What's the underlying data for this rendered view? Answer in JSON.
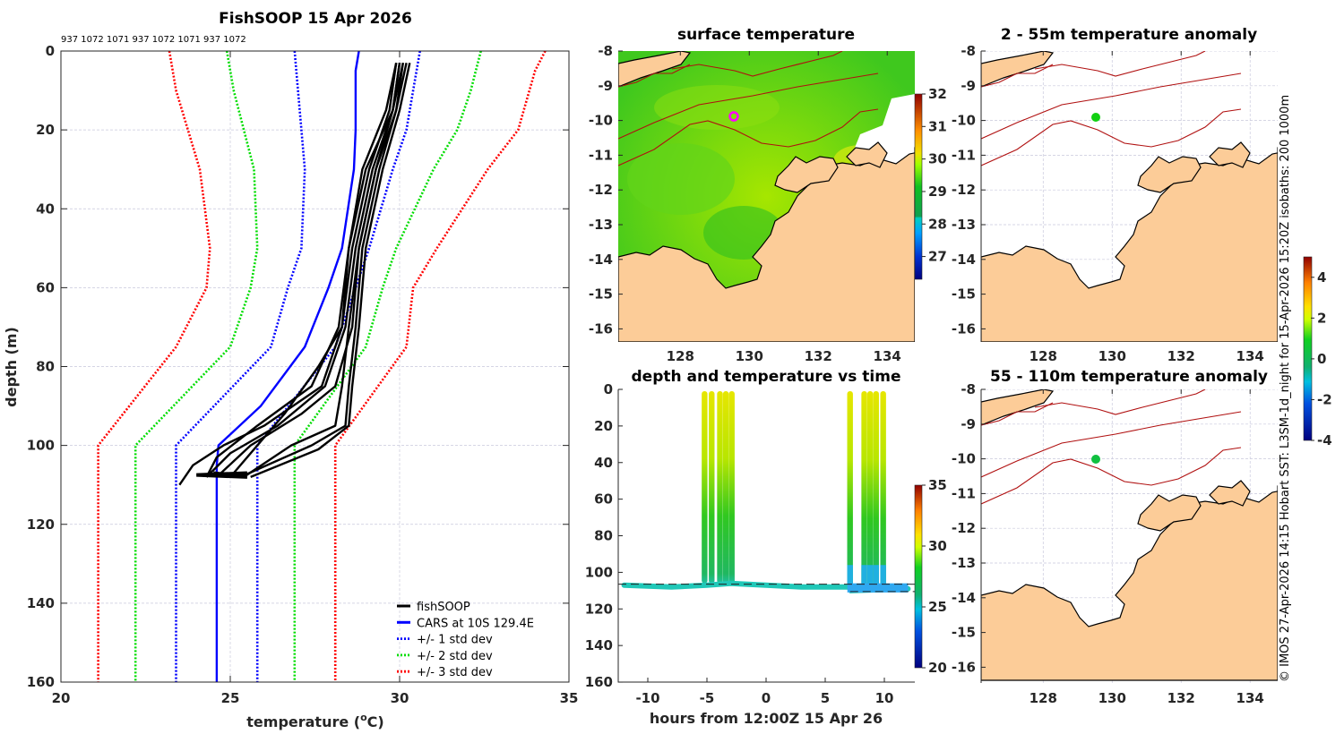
{
  "chart_data": [
    {
      "type": "line",
      "id": "profile",
      "title": "FishSOOP 15 Apr 2026",
      "subtitle": "937 1072 1071 937 1072 1071 937 1072",
      "xlabel": "temperature (°C)",
      "ylabel": "depth (m)",
      "xlim": [
        20,
        35
      ],
      "ylim": [
        160,
        0
      ],
      "xticks": [
        "20",
        "25",
        "30",
        "35"
      ],
      "yticks": [
        "0",
        "20",
        "40",
        "60",
        "80",
        "100",
        "120",
        "140",
        "160"
      ],
      "grid": true,
      "legend_position": "bottom-right",
      "legend": [
        {
          "label": "fishSOOP",
          "color": "#000000",
          "style": "solid"
        },
        {
          "label": "CARS at 10S 129.4E",
          "color": "#0000ff",
          "style": "solid"
        },
        {
          "label": "+/- 1 std dev",
          "color": "#0000ff",
          "style": "dotted"
        },
        {
          "label": "+/- 2 std dev",
          "color": "#00dd00",
          "style": "dotted"
        },
        {
          "label": "+/- 3 std dev",
          "color": "#ff0000",
          "style": "dotted"
        }
      ],
      "cars_mean": {
        "depth": [
          0,
          5,
          20,
          30,
          50,
          60,
          75,
          90,
          100,
          105,
          160
        ],
        "temp": [
          28.8,
          28.7,
          28.7,
          28.65,
          28.3,
          27.9,
          27.2,
          25.9,
          24.65,
          24.6,
          24.6
        ]
      },
      "std_bands": [
        {
          "name": "minus3",
          "color": "#ff0000",
          "depth": [
            0,
            10,
            30,
            50,
            60,
            75,
            100,
            160
          ],
          "temp": [
            23.2,
            23.4,
            24.1,
            24.4,
            24.3,
            23.4,
            21.1,
            21.1
          ]
        },
        {
          "name": "minus2",
          "color": "#00dd00",
          "depth": [
            0,
            10,
            30,
            50,
            60,
            75,
            100,
            160
          ],
          "temp": [
            24.9,
            25.1,
            25.7,
            25.8,
            25.6,
            25.0,
            22.2,
            22.2
          ]
        },
        {
          "name": "minus1",
          "color": "#0000ff",
          "depth": [
            0,
            10,
            30,
            50,
            60,
            75,
            100,
            160
          ],
          "temp": [
            26.9,
            27.0,
            27.2,
            27.1,
            26.7,
            26.2,
            23.4,
            23.4
          ]
        },
        {
          "name": "plus1",
          "color": "#0000ff",
          "depth": [
            0,
            10,
            20,
            30,
            50,
            60,
            75,
            100,
            160
          ],
          "temp": [
            30.6,
            30.4,
            30.2,
            29.8,
            29.1,
            28.7,
            28.1,
            25.8,
            25.8
          ]
        },
        {
          "name": "plus2",
          "color": "#00dd00",
          "depth": [
            0,
            10,
            20,
            30,
            50,
            60,
            75,
            100,
            160
          ],
          "temp": [
            32.4,
            32.1,
            31.7,
            31.0,
            29.9,
            29.5,
            29.0,
            26.9,
            26.9
          ]
        },
        {
          "name": "plus3",
          "color": "#ff0000",
          "depth": [
            0,
            5,
            20,
            30,
            50,
            60,
            75,
            100,
            160
          ],
          "temp": [
            34.3,
            34.0,
            33.5,
            32.6,
            31.1,
            30.4,
            30.2,
            28.1,
            28.1
          ]
        }
      ],
      "fishsoop_profiles": [
        {
          "depth": [
            3,
            15,
            30,
            50,
            70,
            85,
            95,
            100,
            105,
            110
          ],
          "temp": [
            29.9,
            29.7,
            29.1,
            28.6,
            28.3,
            27.7,
            26.0,
            24.8,
            23.9,
            23.5
          ]
        },
        {
          "depth": [
            3,
            15,
            30,
            50,
            70,
            85,
            95,
            102,
            108
          ],
          "temp": [
            30.0,
            29.8,
            29.2,
            28.7,
            28.4,
            27.8,
            26.4,
            25.0,
            24.3
          ]
        },
        {
          "depth": [
            3,
            15,
            30,
            50,
            70,
            85,
            92,
            100,
            108
          ],
          "temp": [
            30.1,
            29.8,
            29.3,
            28.8,
            28.6,
            28.1,
            27.1,
            25.6,
            24.6
          ]
        },
        {
          "depth": [
            3,
            15,
            30,
            50,
            70,
            85,
            95,
            100,
            108
          ],
          "temp": [
            30.2,
            29.9,
            29.4,
            28.9,
            28.7,
            28.5,
            28.4,
            27.4,
            25.3
          ]
        },
        {
          "depth": [
            3,
            15,
            30,
            50,
            70,
            85,
            95,
            101,
            108
          ],
          "temp": [
            30.3,
            30.0,
            29.5,
            29.0,
            28.8,
            28.6,
            28.5,
            27.6,
            25.6
          ]
        },
        {
          "depth": [
            3,
            15,
            30,
            50,
            70,
            85,
            95,
            103,
            108
          ],
          "temp": [
            30.0,
            29.8,
            29.0,
            28.5,
            28.2,
            27.4,
            25.8,
            24.6,
            24.3
          ]
        },
        {
          "depth": [
            3,
            15,
            30,
            50,
            70,
            80,
            92,
            100,
            107
          ],
          "temp": [
            29.9,
            29.6,
            28.9,
            28.5,
            28.3,
            27.6,
            26.6,
            25.8,
            25.1
          ]
        },
        {
          "depth": [
            3,
            15,
            30,
            50,
            70,
            85,
            95,
            100,
            108
          ],
          "temp": [
            30.1,
            29.9,
            29.3,
            28.8,
            28.5,
            28.3,
            28.1,
            26.8,
            25.4
          ]
        }
      ]
    },
    {
      "type": "heatmap",
      "id": "surface-map",
      "title": "surface temperature",
      "xlim": [
        126.2,
        134.8
      ],
      "ylim": [
        -16.5,
        -8
      ],
      "xticks": [
        "128",
        "130",
        "132",
        "134"
      ],
      "yticks": [
        "-8",
        "-9",
        "-10",
        "-11",
        "-12",
        "-13",
        "-14",
        "-15",
        "-16"
      ],
      "colorbar": {
        "min": 26.3,
        "max": 32,
        "ticks": [
          "27",
          "28",
          "29",
          "30",
          "31",
          "32"
        ]
      },
      "marker": {
        "lon": 129.4,
        "lat": -10.0,
        "color": "#ff00ff",
        "shape": "ring"
      }
    },
    {
      "type": "scatter",
      "id": "depth-time",
      "title": "depth and temperature vs time",
      "xlabel": "hours from 12:00Z 15 Apr 26",
      "xlim": [
        -12.5,
        12.5
      ],
      "ylim": [
        160,
        0
      ],
      "xticks": [
        "-10",
        "-5",
        "0",
        "5",
        "10"
      ],
      "yticks": [
        "0",
        "20",
        "40",
        "60",
        "80",
        "100",
        "120",
        "140",
        "160"
      ],
      "colorbar": {
        "min": 20,
        "max": 35,
        "ticks": [
          "20",
          "25",
          "30",
          "35"
        ]
      },
      "casts_hours": [
        -5.2,
        -4.6,
        -3.9,
        -3.4,
        -2.9,
        7.1,
        8.3,
        8.8,
        9.3,
        9.9
      ],
      "cast_bottom_depth": [
        106,
        106,
        106,
        106,
        106,
        108,
        108,
        108,
        108,
        108
      ],
      "bottom_track": {
        "hours": [
          -12,
          -8,
          -5,
          -3,
          0,
          3,
          7,
          7.2,
          12
        ],
        "depth": [
          107,
          108,
          107,
          106,
          107,
          108,
          108,
          110,
          109
        ]
      }
    },
    {
      "type": "heatmap",
      "id": "anom-2-55",
      "title": "2 - 55m temperature anomaly",
      "xlim": [
        126.2,
        134.8
      ],
      "ylim": [
        -16.5,
        -8
      ],
      "xticks": [
        "128",
        "130",
        "132",
        "134"
      ],
      "yticks": [
        "-8",
        "-9",
        "-10",
        "-11",
        "-12",
        "-13",
        "-14",
        "-15",
        "-16"
      ],
      "marker": {
        "lon": 129.4,
        "lat": -10.0,
        "value": 0.0,
        "color": "#12d012"
      }
    },
    {
      "type": "heatmap",
      "id": "anom-55-110",
      "title": "55 - 110m temperature anomaly",
      "xlim": [
        126.2,
        134.8
      ],
      "ylim": [
        -16.5,
        -8
      ],
      "xticks": [
        "128",
        "130",
        "132",
        "134"
      ],
      "yticks": [
        "-8",
        "-9",
        "-10",
        "-11",
        "-12",
        "-13",
        "-14",
        "-15",
        "-16"
      ],
      "marker": {
        "lon": 129.4,
        "lat": -10.0,
        "value": -0.3,
        "color": "#10c040"
      },
      "colorbar": {
        "min": -4,
        "max": 5,
        "ticks": [
          "-4",
          "-2",
          "0",
          "2",
          "4"
        ]
      }
    }
  ],
  "credit": "© IMOS 27-Apr-2026 14:15 Hobart SST: L3SM-1d_night for 15-Apr-2026 15:20Z isobaths: 200  1000m",
  "colors": {
    "land": "#fccc98",
    "isobath": "#b01010",
    "coast": "#000000"
  }
}
